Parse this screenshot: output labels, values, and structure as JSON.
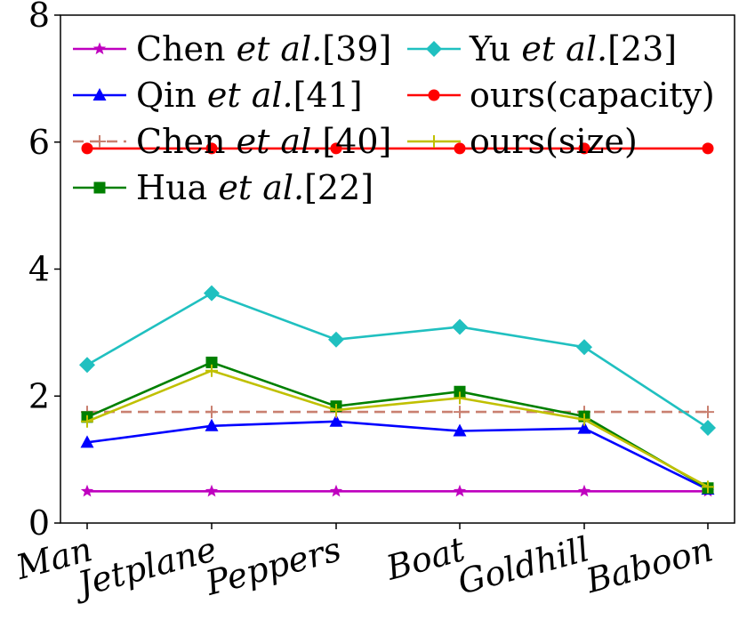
{
  "chart_data": {
    "type": "line",
    "title": "",
    "xlabel": "",
    "ylabel": "",
    "categories": [
      "Man",
      "Jetplane",
      "Peppers",
      "Boat",
      "Goldhill",
      "Baboon"
    ],
    "ylim": [
      0,
      8
    ],
    "yticks": [
      0,
      2,
      4,
      6,
      8
    ],
    "grid": false,
    "legend_placement": "top-left, two columns",
    "series": [
      {
        "name_main": "Chen ",
        "name_italic": "et al.",
        "name_ref": "[39]",
        "color": "#bf00bf",
        "linestyle": "solid",
        "marker": "star",
        "values": [
          0.5,
          0.5,
          0.5,
          0.5,
          0.5,
          0.5
        ]
      },
      {
        "name_main": "Qin ",
        "name_italic": "et al.",
        "name_ref": "[41]",
        "color": "#0000ff",
        "linestyle": "solid",
        "marker": "triangle",
        "values": [
          1.27,
          1.53,
          1.6,
          1.45,
          1.49,
          0.53
        ]
      },
      {
        "name_main": "Chen ",
        "name_italic": "et al.",
        "name_ref": "[40]",
        "color": "#c98070",
        "linestyle": "dashed",
        "marker": "plus",
        "values": [
          1.75,
          1.75,
          1.75,
          1.75,
          1.75,
          1.75
        ]
      },
      {
        "name_main": "Hua ",
        "name_italic": "et al.",
        "name_ref": "[22]",
        "color": "#008000",
        "linestyle": "solid",
        "marker": "square",
        "values": [
          1.67,
          2.53,
          1.84,
          2.07,
          1.68,
          0.55
        ]
      },
      {
        "name_main": "Yu ",
        "name_italic": "et al.",
        "name_ref": "[23]",
        "color": "#20c0c0",
        "linestyle": "solid",
        "marker": "diamond",
        "values": [
          2.49,
          3.62,
          2.89,
          3.09,
          2.77,
          1.5
        ]
      },
      {
        "name_main": "ours(capacity)",
        "name_italic": "",
        "name_ref": "",
        "color": "#ff0000",
        "linestyle": "solid",
        "marker": "circle",
        "values": [
          5.9,
          5.9,
          5.9,
          5.9,
          5.9,
          5.9
        ]
      },
      {
        "name_main": "ours(size)",
        "name_italic": "",
        "name_ref": "",
        "color": "#c0c000",
        "linestyle": "solid",
        "marker": "plus",
        "values": [
          1.6,
          2.4,
          1.78,
          1.97,
          1.63,
          0.57
        ]
      }
    ]
  }
}
